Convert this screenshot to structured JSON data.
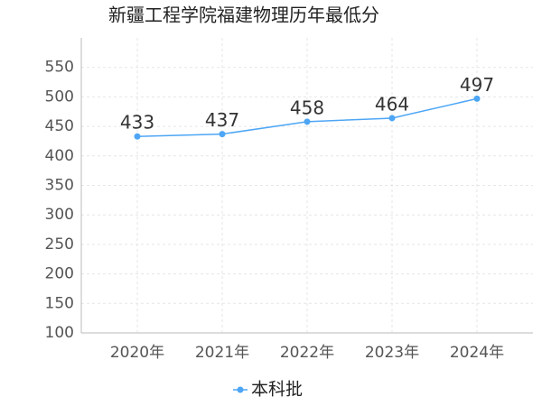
{
  "chart_data": {
    "type": "line",
    "title": "新疆工程学院福建物理历年最低分",
    "categories": [
      "2020年",
      "2021年",
      "2022年",
      "2023年",
      "2024年"
    ],
    "series": [
      {
        "name": "本科批",
        "color": "#4da6f5",
        "values": [
          433,
          437,
          458,
          464,
          497
        ]
      }
    ],
    "ylim": [
      100,
      600
    ],
    "yticks": [
      100,
      150,
      200,
      250,
      300,
      350,
      400,
      450,
      500,
      550
    ],
    "grid": true,
    "legend": "bottom"
  }
}
